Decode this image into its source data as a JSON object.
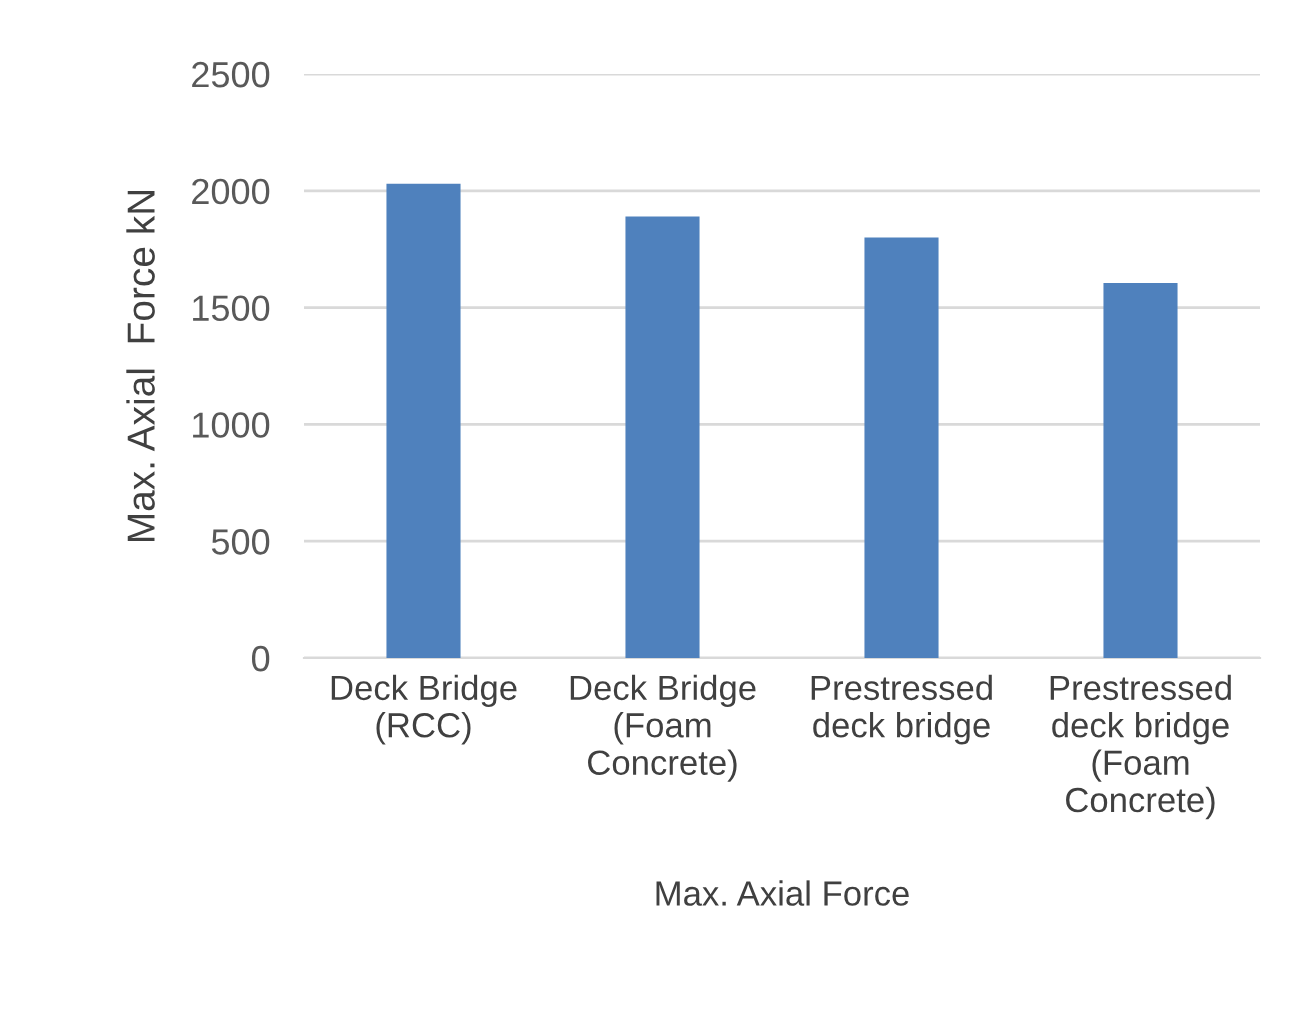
{
  "chart_data": {
    "type": "bar",
    "ylabel": "Max. Axial  Force kN",
    "xlabel": "Max. Axial Force",
    "categories": [
      "Deck Bridge\n(RCC)",
      "Deck Bridge\n(Foam\nConcrete)",
      "Prestressed\ndeck bridge",
      "Prestressed\ndeck bridge\n(Foam\nConcrete)"
    ],
    "values": [
      2030,
      1890,
      1800,
      1605
    ],
    "color": "#4f81bd",
    "ylim": [
      0,
      2500
    ],
    "yticks": [
      0,
      500,
      1000,
      1500,
      2000,
      2500
    ],
    "grid": "y"
  }
}
